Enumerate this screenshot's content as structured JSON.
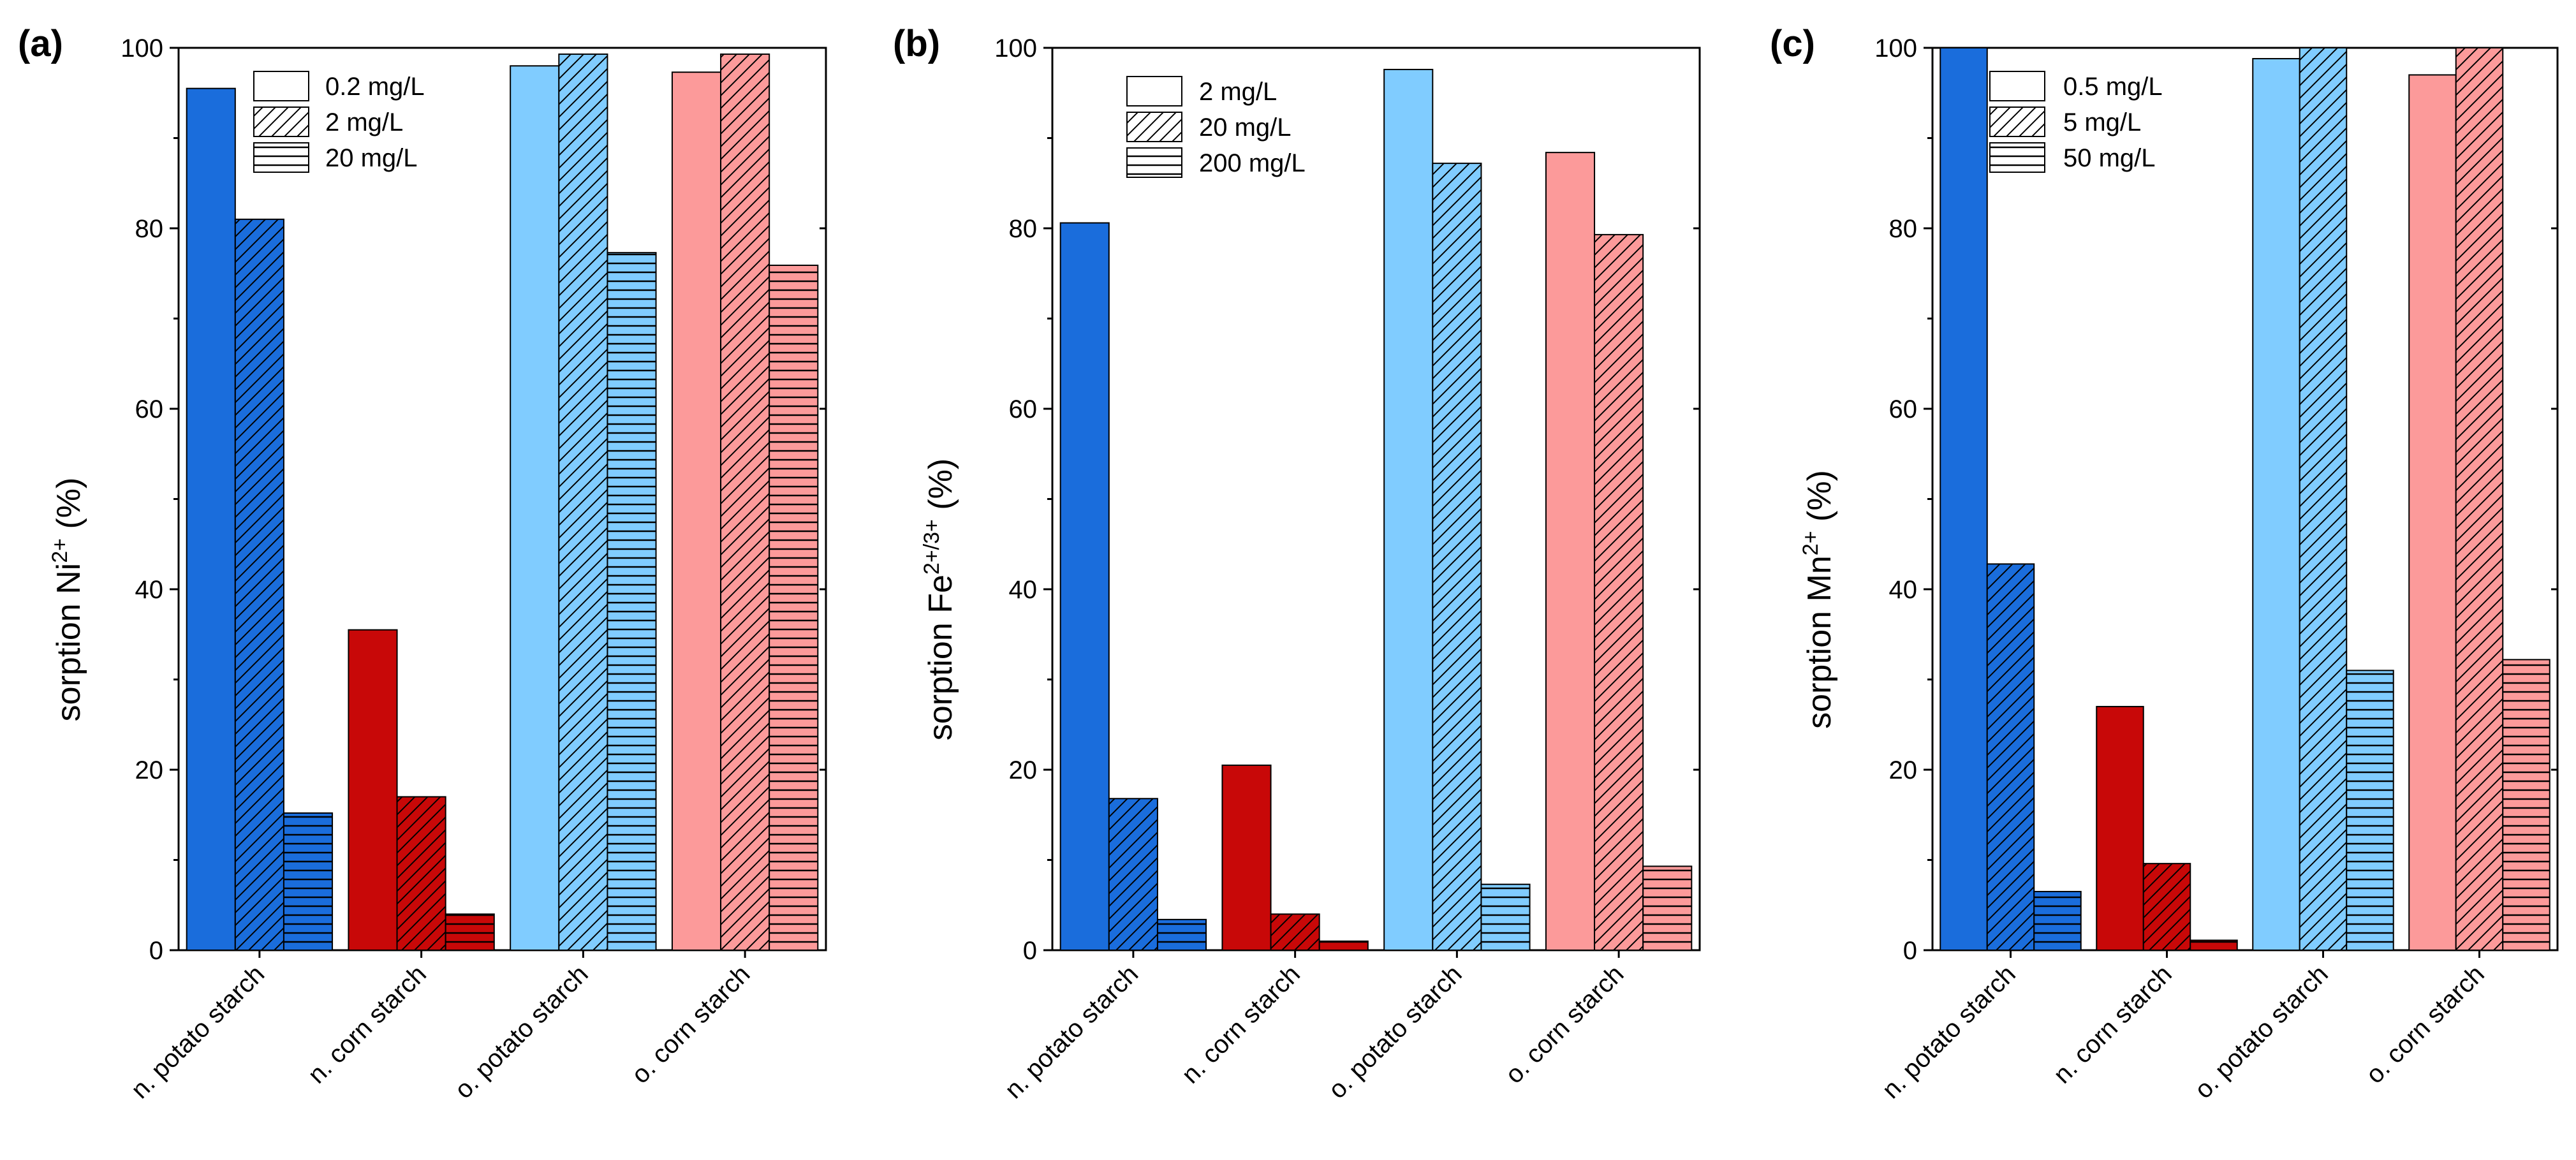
{
  "chart_data": [
    {
      "type": "bar",
      "panel": "(a)",
      "ylabel": {
        "prefix": "sorption Ni",
        "sup": "2+",
        "suffix": " (%)"
      },
      "ylim": [
        0,
        100
      ],
      "yticks": [
        0,
        20,
        40,
        60,
        80,
        100
      ],
      "categories": [
        "n. potato starch",
        "n. corn starch",
        "o. potato starch",
        "o. corn starch"
      ],
      "series": [
        {
          "name": "0.2 mg/L",
          "pattern": "solid",
          "values": [
            95.5,
            35.5,
            98.0,
            97.3
          ]
        },
        {
          "name": "2 mg/L",
          "pattern": "diagonal",
          "values": [
            81.0,
            17.0,
            99.3,
            99.3
          ]
        },
        {
          "name": "20 mg/L",
          "pattern": "horizontal",
          "values": [
            15.2,
            4.0,
            77.3,
            75.9
          ]
        }
      ]
    },
    {
      "type": "bar",
      "panel": "(b)",
      "ylabel": {
        "prefix": "sorption Fe",
        "sup": "2+/3+",
        "suffix": " (%)"
      },
      "ylim": [
        0,
        100
      ],
      "yticks": [
        0,
        20,
        40,
        60,
        80,
        100
      ],
      "categories": [
        "n. potato starch",
        "n. corn starch",
        "o. potato starch",
        "o. corn starch"
      ],
      "series": [
        {
          "name": "2 mg/L",
          "pattern": "solid",
          "values": [
            80.6,
            20.5,
            97.6,
            88.4
          ]
        },
        {
          "name": "20 mg/L",
          "pattern": "diagonal",
          "values": [
            16.8,
            4.0,
            87.2,
            79.3
          ]
        },
        {
          "name": "200 mg/L",
          "pattern": "horizontal",
          "values": [
            3.4,
            1.0,
            7.3,
            9.3
          ]
        }
      ]
    },
    {
      "type": "bar",
      "panel": "(c)",
      "ylabel": {
        "prefix": "sorption Mn",
        "sup": "2+",
        "suffix": " (%)"
      },
      "ylim": [
        0,
        100
      ],
      "yticks": [
        0,
        20,
        40,
        60,
        80,
        100
      ],
      "categories": [
        "n. potato starch",
        "n. corn starch",
        "o. potato starch",
        "o. corn starch"
      ],
      "series": [
        {
          "name": "0.5 mg/L",
          "pattern": "solid",
          "values": [
            100.0,
            27.0,
            98.8,
            97.0
          ]
        },
        {
          "name": "5 mg/L",
          "pattern": "diagonal",
          "values": [
            42.8,
            9.6,
            100.0,
            100.0
          ]
        },
        {
          "name": "50 mg/L",
          "pattern": "horizontal",
          "values": [
            6.5,
            1.1,
            31.0,
            32.2
          ]
        }
      ]
    }
  ],
  "colors": {
    "category": [
      "#1a6ddc",
      "#c80808",
      "#80ccff",
      "#fc9a9a"
    ],
    "outline": "#000000",
    "hatch": "#000000"
  }
}
